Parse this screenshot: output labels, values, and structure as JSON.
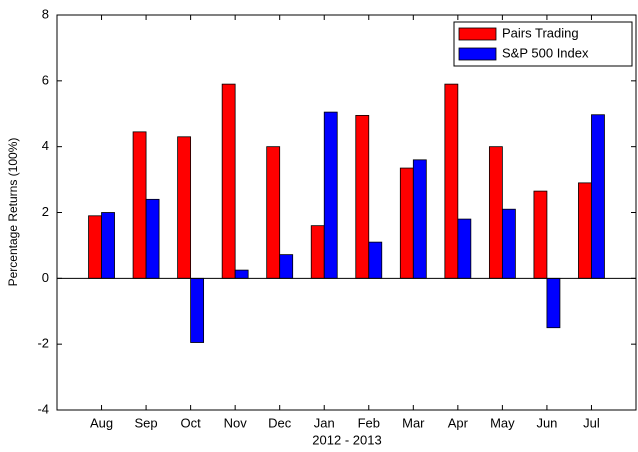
{
  "chart_data": {
    "type": "bar",
    "categories": [
      "Aug",
      "Sep",
      "Oct",
      "Nov",
      "Dec",
      "Jan",
      "Feb",
      "Mar",
      "Apr",
      "May",
      "Jun",
      "Jul"
    ],
    "series": [
      {
        "name": "Pairs Trading",
        "color": "#ff0000",
        "values": [
          1.9,
          4.45,
          4.3,
          5.9,
          4.0,
          1.6,
          4.95,
          3.35,
          5.9,
          4.0,
          2.65,
          2.9
        ]
      },
      {
        "name": "S&P 500 Index",
        "color": "#0000ff",
        "values": [
          2.0,
          2.4,
          -1.95,
          0.25,
          0.72,
          5.05,
          1.1,
          3.6,
          1.8,
          2.1,
          -1.5,
          4.97
        ]
      }
    ],
    "xlabel": "2012 - 2013",
    "ylabel": "Percentage Returns (100%)",
    "ylim": [
      -4,
      8
    ],
    "yticks": [
      -4,
      -2,
      0,
      2,
      4,
      6,
      8
    ],
    "grid": false,
    "legend": "upper right"
  }
}
